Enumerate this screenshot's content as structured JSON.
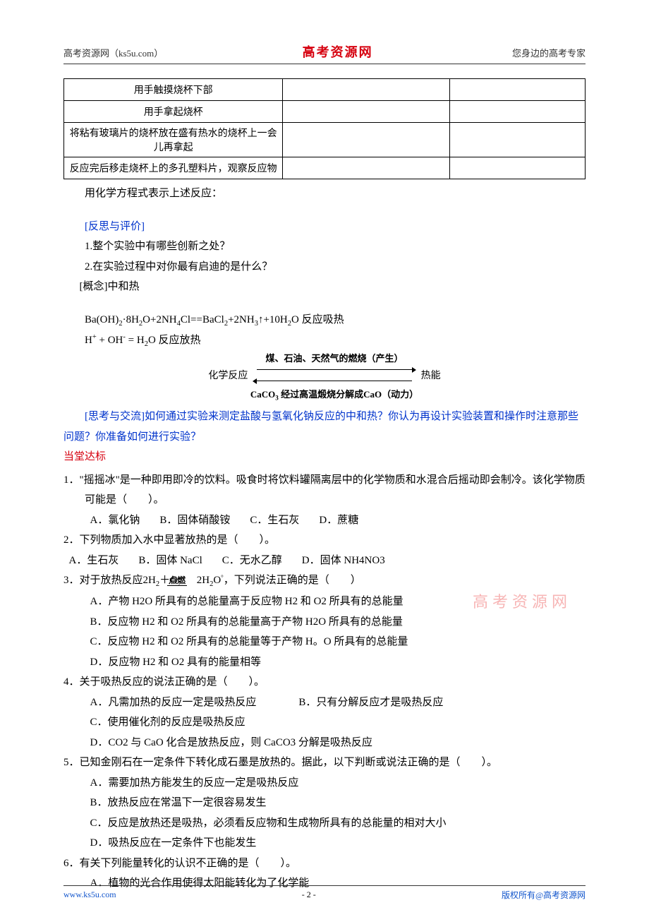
{
  "colors": {
    "accent_red": "#d6000f",
    "link_blue": "#1155cc",
    "text_blue": "#0033cc",
    "watermark": "#f7b5b5",
    "border": "#000000",
    "rule": "#333333",
    "bg": "#ffffff"
  },
  "header": {
    "left": "高考资源网（ks5u.com）",
    "center": "高考资源网",
    "right": "您身边的高考专家"
  },
  "table": {
    "rows": [
      "用手触摸烧杯下部",
      "用手拿起烧杯",
      "将粘有玻璃片的烧杯放在盛有热水的烧杯上一会儿再拿起",
      "反应完后移走烧杯上的多孔塑料片，观察反应物"
    ]
  },
  "after_table": "用化学方程式表示上述反应：",
  "reflect_title": "[反思与评价]",
  "reflect_q1": "1.整个实验中有哪些创新之处？",
  "reflect_q2": "2.在实验过程中对你最有启迪的是什么？",
  "concept": "[概念]中和热",
  "eq1_html": "Ba(OH)<sub>2</sub>·8H<sub>2</sub>O+2NH<sub>4</sub>Cl==BaCl<sub>2</sub>+2NH<sub>3</sub>↑+10H<sub>2</sub>O 反应吸热",
  "eq2_html": "H<sup>+</sup> + OH<sup>-</sup> = H<sub>2</sub>O 反应放热",
  "diagram": {
    "left": "化学反应",
    "top": "煤、石油、天然气的燃烧（产生）",
    "bottom_html": "CaCO<sub>3</sub> 经过高温煅烧分解成CaO（动力）",
    "right": "热能"
  },
  "think_title": "[思考与交流]",
  "think_text": "如何通过实验来测定盐酸与氢氧化钠反应的中和热？你认为再设计实验装置和操作时注意那些问题？你准备如何进行实验？",
  "section": "当堂达标",
  "questions": [
    {
      "num": "1．",
      "stem": "\"摇摇冰\"是一种即用即冷的饮料。吸食时将饮料罐隔离层中的化学物质和水混合后摇动即会制冷。该化学物质可能是（　　）。",
      "opts": [
        "A．氯化钠",
        "B．固体硝酸铵",
        "C．生石灰",
        "D．蔗糖"
      ],
      "layout": "inline"
    },
    {
      "num": "2．",
      "stem": "下列物质加入水中显著放热的是（　　）。",
      "opts": [
        "A．生石灰",
        "B．固体 NaCl",
        "C．无水乙醇",
        "D．固体 NH4NO3"
      ],
      "layout": "inline-flush"
    },
    {
      "num": "3．",
      "stem_html": "对于放热反应2H<sub>2</sub>＋O<sub>2</sub> <span class=\"frac\"><span class=\"top\">点燃</span><span class=\"bot\">　</span></span> 2H<sub>2</sub>O<span class=\"ring\">°</span>，下列说法正确的是（　　）",
      "opts": [
        "A．产物 H2O 所具有的总能量高于反应物 H2 和 O2 所具有的总能量",
        "B．反应物 H2 和 O2 所具有的总能量高于产物 H2O 所具有的总能量",
        "C．反应物 H2 和 O2 所具有的总能量等于产物 H。O 所具有的总能量",
        "D．反应物 H2 和 O2 具有的能量相等"
      ],
      "layout": "block"
    },
    {
      "num": "4．",
      "stem": "关于吸热反应的说法正确的是（　　）。",
      "opts": [
        "A．凡需加热的反应一定是吸热反应　　　　B．只有分解反应才是吸热反应",
        "C．使用催化剂的反应是吸热反应",
        "D．CO2 与 CaO 化合是放热反应，则 CaCO3 分解是吸热反应"
      ],
      "layout": "block"
    },
    {
      "num": "5．",
      "stem": "已知金刚石在一定条件下转化成石墨是放热的。据此，以下判断或说法正确的是（　　）。",
      "opts": [
        "A．需要加热方能发生的反应一定是吸热反应",
        "B．放热反应在常温下一定很容易发生",
        "C．反应是放热还是吸热，必须看反应物和生成物所具有的总能量的相对大小",
        "D．吸热反应在一定条件下也能发生"
      ],
      "layout": "block"
    },
    {
      "num": "6．",
      "stem": "有关下列能量转化的认识不正确的是（　　）。",
      "opts": [
        "A．植物的光合作用使得太阳能转化为了化学能"
      ],
      "layout": "block"
    }
  ],
  "watermark": "高考资源网",
  "footer": {
    "left": "www.ks5u.com",
    "mid": "- 2 -",
    "right": "版权所有@高考资源网"
  }
}
